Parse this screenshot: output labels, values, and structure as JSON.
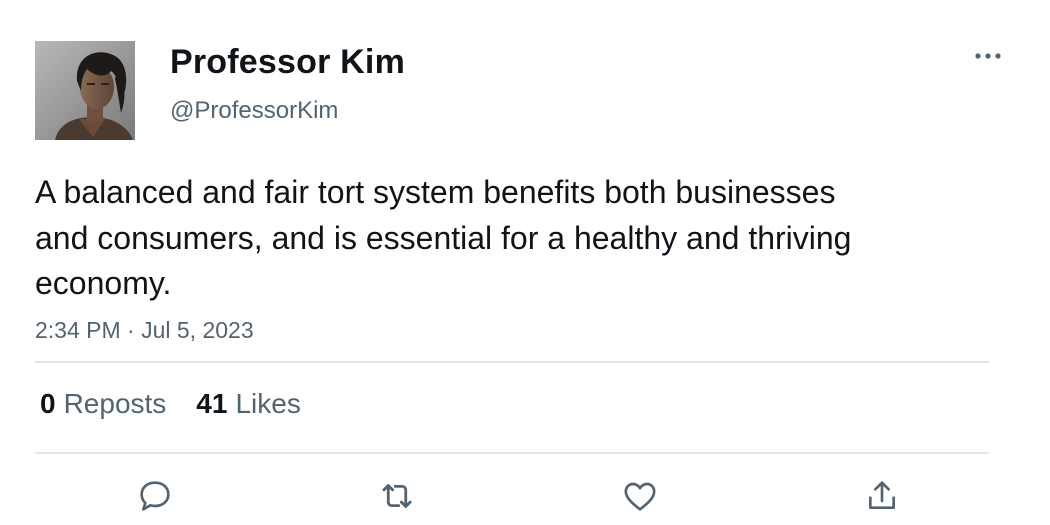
{
  "author": {
    "display_name": "Professor Kim",
    "handle": "@ProfessorKim",
    "avatar_icon": "profile-photo"
  },
  "tweet": {
    "text": "A balanced and fair tort system benefits both businesses and consumers, and is essential for a healthy and thriving economy.",
    "timestamp": "2:34 PM · Jul 5, 2023"
  },
  "stats": {
    "reposts_count": "0",
    "reposts_label": "Reposts",
    "likes_count": "41",
    "likes_label": "Likes"
  },
  "actions": [
    {
      "name": "reply",
      "icon": "speech-bubble-icon"
    },
    {
      "name": "repost",
      "icon": "repost-arrows-icon"
    },
    {
      "name": "like",
      "icon": "heart-icon"
    },
    {
      "name": "share",
      "icon": "share-upload-icon"
    }
  ],
  "more_menu_icon": "ellipsis-icon",
  "colors": {
    "text_primary": "#0f1419",
    "text_secondary": "#536471",
    "divider": "#e1e4e8",
    "icon": "#536471"
  }
}
